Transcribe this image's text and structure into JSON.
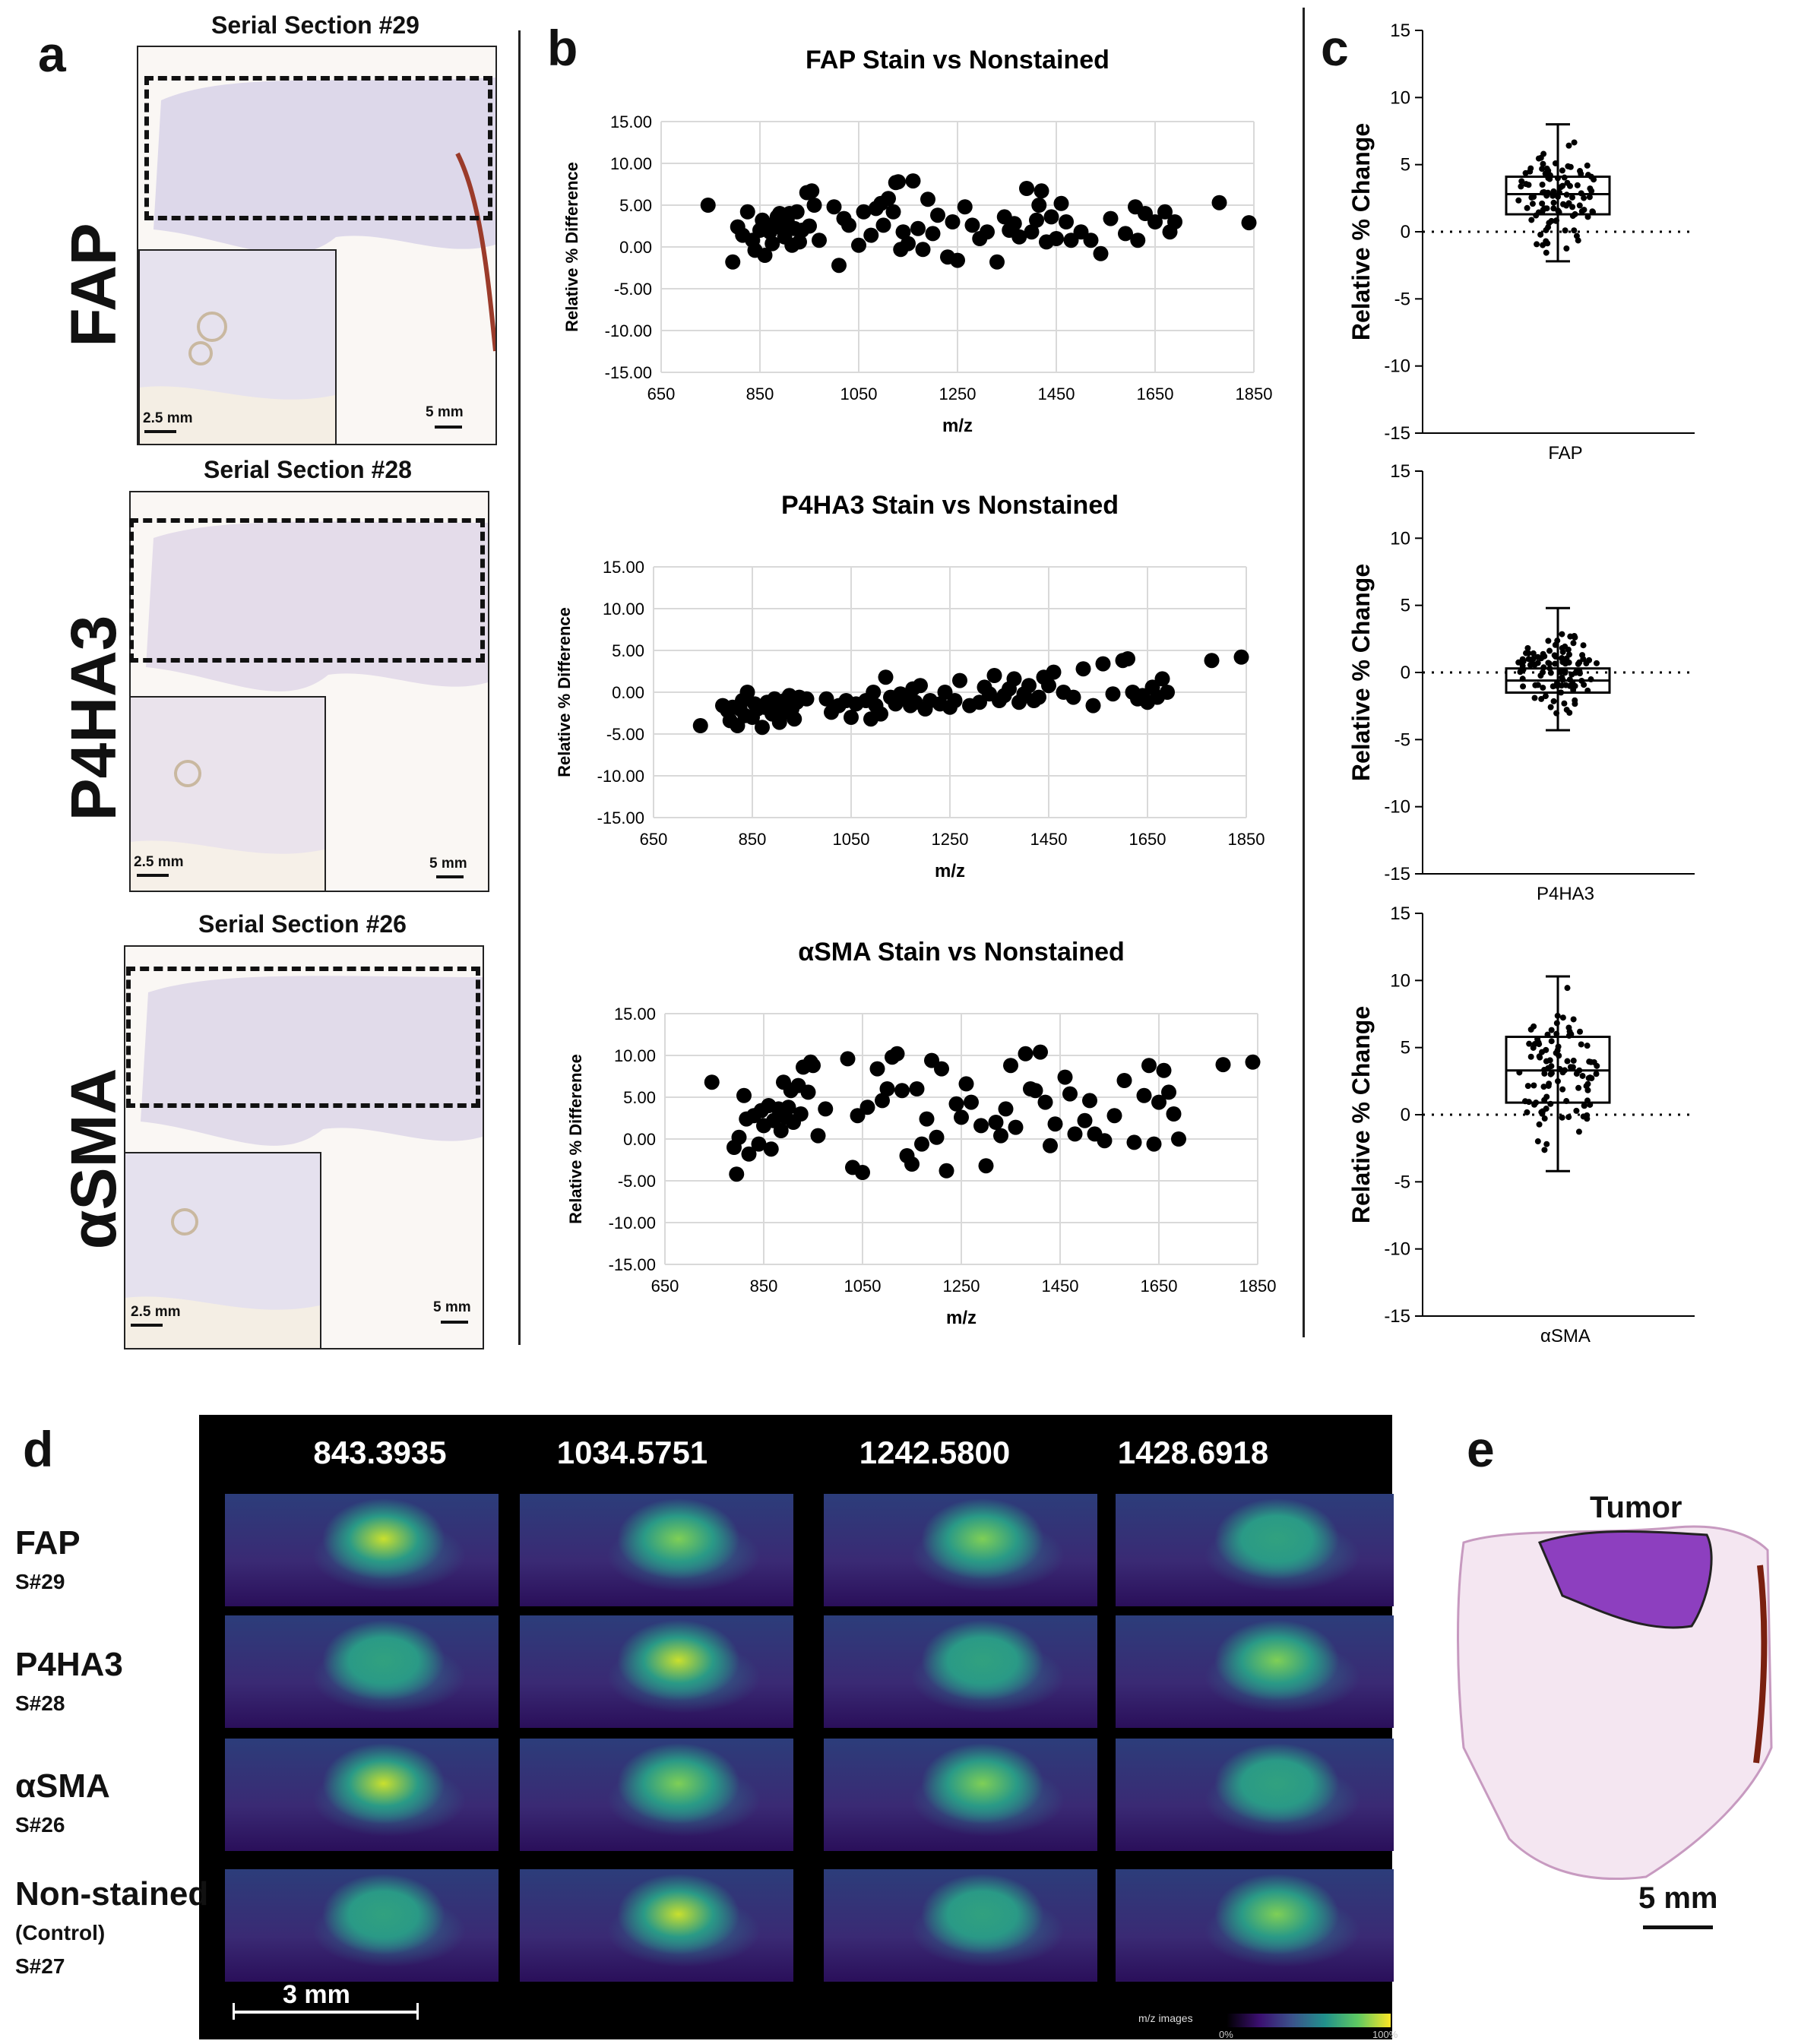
{
  "panel_a": {
    "letter": "a",
    "sections": [
      {
        "title": "Serial  Section #29",
        "stain": "FAP",
        "inset_scale": "2.5 mm",
        "full_scale": "5 mm"
      },
      {
        "title": "Serial  Section #28",
        "stain": "P4HA3",
        "inset_scale": "2.5 mm",
        "full_scale": "5 mm"
      },
      {
        "title": "Serial  Section #26",
        "stain": "αSMA",
        "inset_scale": "2.5 mm",
        "full_scale": "5 mm"
      }
    ]
  },
  "panel_b": {
    "letter": "b"
  },
  "panel_c": {
    "letter": "c"
  },
  "panel_d": {
    "letter": "d",
    "mz_values": [
      "843.3935",
      "1034.5751",
      "1242.5800",
      "1428.6918"
    ],
    "rows": [
      {
        "label": "FAP",
        "sub": "S#29"
      },
      {
        "label": "P4HA3",
        "sub": "S#28"
      },
      {
        "label": "αSMA",
        "sub": "S#26"
      },
      {
        "label": "Non-stained",
        "label2": "(Control)",
        "sub": "S#27"
      }
    ],
    "scale_bar": "3 mm",
    "colorbar_label": "m/z images",
    "colorbar_min": "0%",
    "colorbar_max": "100%"
  },
  "panel_e": {
    "letter": "e",
    "tumor_label": "Tumor",
    "scale_bar": "5 mm"
  },
  "chart_data": [
    {
      "type": "scatter",
      "panel": "b",
      "title": "FAP Stain vs Nonstained",
      "xlabel": "m/z",
      "ylabel": "Relative % Difference",
      "xlim": [
        650,
        1850
      ],
      "ylim": [
        -15,
        15
      ],
      "xticks": [
        650,
        850,
        1050,
        1250,
        1450,
        1650,
        1850
      ],
      "yticks": [
        15,
        10,
        5,
        0,
        -5,
        -10,
        -15
      ],
      "ytick_labels": [
        "15.00",
        "10.00",
        "5.00",
        "0.00",
        "-5.00",
        "-10.00",
        "-15.00"
      ],
      "x": [
        745,
        795,
        805,
        815,
        825,
        835,
        840,
        850,
        855,
        860,
        870,
        875,
        880,
        885,
        890,
        895,
        900,
        905,
        910,
        915,
        920,
        925,
        930,
        935,
        945,
        950,
        955,
        960,
        970,
        1000,
        1010,
        1020,
        1030,
        1050,
        1060,
        1075,
        1085,
        1095,
        1100,
        1110,
        1120,
        1125,
        1130,
        1135,
        1140,
        1150,
        1160,
        1170,
        1180,
        1190,
        1200,
        1210,
        1230,
        1240,
        1250,
        1265,
        1280,
        1295,
        1310,
        1330,
        1345,
        1355,
        1365,
        1375,
        1390,
        1400,
        1410,
        1415,
        1420,
        1430,
        1440,
        1450,
        1460,
        1470,
        1480,
        1500,
        1520,
        1540,
        1560,
        1590,
        1610,
        1615,
        1630,
        1650,
        1670,
        1680,
        1690,
        1780,
        1840
      ],
      "y": [
        5.0,
        -1.8,
        2.4,
        1.4,
        4.2,
        0.8,
        -0.4,
        2.0,
        3.2,
        -1.0,
        1.8,
        0.4,
        2.8,
        3.6,
        4.0,
        2.2,
        1.2,
        3.2,
        4.0,
        0.2,
        2.2,
        4.2,
        0.6,
        2.0,
        6.5,
        2.5,
        6.7,
        5.0,
        0.8,
        4.8,
        -2.2,
        3.4,
        2.6,
        0.2,
        4.2,
        1.4,
        4.6,
        5.2,
        2.6,
        5.8,
        4.2,
        7.7,
        7.8,
        -0.3,
        1.8,
        0.4,
        7.9,
        2.2,
        -0.3,
        5.7,
        1.6,
        3.8,
        -1.2,
        3.0,
        -1.6,
        4.8,
        2.6,
        1.0,
        1.8,
        -1.8,
        3.6,
        2.0,
        2.8,
        1.2,
        7.0,
        1.8,
        3.2,
        5.0,
        6.7,
        0.6,
        3.6,
        1.0,
        5.2,
        3.0,
        0.8,
        1.8,
        0.8,
        -0.8,
        3.4,
        1.6,
        4.8,
        0.8,
        4.0,
        3.0,
        4.2,
        1.8,
        3.0,
        5.3,
        2.9
      ]
    },
    {
      "type": "scatter",
      "panel": "b",
      "title": "P4HA3 Stain vs Nonstained",
      "xlabel": "m/z",
      "ylabel": "Relative % Difference",
      "xlim": [
        650,
        1850
      ],
      "ylim": [
        -15,
        15
      ],
      "xticks": [
        650,
        850,
        1050,
        1250,
        1450,
        1650,
        1850
      ],
      "yticks": [
        15,
        10,
        5,
        0,
        -5,
        -10,
        -15
      ],
      "ytick_labels": [
        "15.00",
        "10.00",
        "5.00",
        "0.00",
        "-5.00",
        "-10.00",
        "-15.00"
      ],
      "x": [
        745,
        790,
        800,
        805,
        810,
        820,
        825,
        830,
        835,
        840,
        850,
        855,
        860,
        870,
        875,
        880,
        890,
        895,
        900,
        905,
        910,
        915,
        920,
        925,
        930,
        935,
        940,
        945,
        960,
        1000,
        1010,
        1025,
        1040,
        1050,
        1060,
        1080,
        1090,
        1095,
        1100,
        1110,
        1120,
        1130,
        1140,
        1150,
        1160,
        1170,
        1175,
        1180,
        1190,
        1200,
        1210,
        1230,
        1240,
        1250,
        1260,
        1270,
        1290,
        1310,
        1320,
        1330,
        1340,
        1350,
        1360,
        1370,
        1380,
        1390,
        1400,
        1410,
        1420,
        1430,
        1440,
        1450,
        1460,
        1480,
        1500,
        1520,
        1540,
        1560,
        1580,
        1600,
        1610,
        1620,
        1630,
        1640,
        1650,
        1660,
        1670,
        1680,
        1690,
        1780,
        1840
      ],
      "y": [
        -4.0,
        -1.6,
        -2.2,
        -3.4,
        -1.8,
        -4.0,
        -2.0,
        -1.0,
        -2.8,
        0.0,
        -3.0,
        -1.4,
        -2.0,
        -4.2,
        -1.8,
        -1.2,
        -2.6,
        -0.8,
        -2.2,
        -3.6,
        -1.4,
        -1.0,
        -2.4,
        -0.4,
        -2.0,
        -3.2,
        -1.2,
        -0.6,
        -0.8,
        -0.8,
        -2.4,
        -1.6,
        -1.0,
        -3.0,
        -1.4,
        -1.0,
        -3.2,
        0.0,
        -1.6,
        -2.6,
        1.8,
        -0.6,
        -1.4,
        -0.2,
        -0.8,
        -1.6,
        0.4,
        -1.2,
        0.8,
        -2.0,
        -1.0,
        -1.4,
        0.0,
        -1.8,
        -1.0,
        1.4,
        -1.6,
        -1.2,
        0.6,
        -0.2,
        2.0,
        -1.0,
        -0.4,
        0.4,
        1.6,
        -1.2,
        -0.2,
        0.8,
        -1.0,
        -0.6,
        1.8,
        0.8,
        2.4,
        0.0,
        -0.6,
        2.8,
        -1.6,
        3.4,
        -0.2,
        3.8,
        4.0,
        0.0,
        -0.8,
        -0.4,
        -1.2,
        0.6,
        -0.6,
        1.6,
        0.0,
        3.8,
        4.2
      ]
    },
    {
      "type": "scatter",
      "panel": "b",
      "title": "αSMA Stain vs Nonstained",
      "xlabel": "m/z",
      "ylabel": "Relative % Difference",
      "xlim": [
        650,
        1850
      ],
      "ylim": [
        -15,
        15
      ],
      "xticks": [
        650,
        850,
        1050,
        1250,
        1450,
        1650,
        1850
      ],
      "yticks": [
        15,
        10,
        5,
        0,
        -5,
        -10,
        -15
      ],
      "ytick_labels": [
        "15.00",
        "10.00",
        "5.00",
        "0.00",
        "-5.00",
        "-10.00",
        "-15.00"
      ],
      "x": [
        745,
        790,
        795,
        800,
        810,
        815,
        820,
        830,
        840,
        845,
        850,
        860,
        865,
        870,
        880,
        885,
        890,
        895,
        900,
        905,
        910,
        920,
        925,
        930,
        940,
        945,
        950,
        960,
        975,
        1020,
        1030,
        1040,
        1050,
        1060,
        1080,
        1090,
        1100,
        1110,
        1120,
        1130,
        1140,
        1150,
        1160,
        1170,
        1180,
        1190,
        1200,
        1210,
        1220,
        1240,
        1250,
        1260,
        1270,
        1290,
        1300,
        1320,
        1330,
        1340,
        1350,
        1360,
        1380,
        1390,
        1400,
        1410,
        1420,
        1430,
        1440,
        1460,
        1470,
        1480,
        1500,
        1510,
        1520,
        1540,
        1560,
        1580,
        1600,
        1620,
        1630,
        1640,
        1650,
        1660,
        1670,
        1680,
        1690,
        1780,
        1840
      ],
      "y": [
        6.8,
        -1.0,
        -4.2,
        0.2,
        5.2,
        2.4,
        -1.8,
        2.8,
        -0.6,
        3.4,
        1.6,
        4.0,
        -1.2,
        2.2,
        3.6,
        1.0,
        6.8,
        2.6,
        3.8,
        5.8,
        2.0,
        6.4,
        3.0,
        8.6,
        5.6,
        9.2,
        8.8,
        0.4,
        3.6,
        9.6,
        -3.4,
        2.8,
        -4.0,
        3.8,
        8.4,
        4.6,
        6.0,
        9.8,
        10.2,
        5.8,
        -2.0,
        -3.0,
        6.0,
        -0.6,
        2.4,
        9.4,
        0.2,
        8.4,
        -3.8,
        4.2,
        2.6,
        6.6,
        4.4,
        1.6,
        -3.2,
        2.0,
        0.4,
        3.6,
        8.8,
        1.4,
        10.2,
        6.0,
        5.8,
        10.4,
        4.4,
        -0.8,
        1.8,
        7.4,
        5.4,
        0.6,
        2.2,
        4.6,
        0.6,
        -0.2,
        2.8,
        7.0,
        -0.4,
        5.2,
        8.8,
        -0.6,
        4.4,
        8.2,
        5.6,
        3.0,
        0.0,
        8.9,
        9.2
      ]
    },
    {
      "type": "box-scatter",
      "panel": "c",
      "category": "FAP",
      "ylabel": "Relative % Change",
      "ylim": [
        -15,
        15
      ],
      "yticks": [
        15,
        10,
        5,
        0,
        -5,
        -10,
        -15
      ],
      "box": {
        "min": -2.2,
        "q1": 1.3,
        "median": 2.8,
        "q3": 4.1,
        "max": 8.0
      }
    },
    {
      "type": "box-scatter",
      "panel": "c",
      "category": "P4HA3",
      "ylabel": "Relative % Change",
      "ylim": [
        -15,
        15
      ],
      "yticks": [
        15,
        10,
        5,
        0,
        -5,
        -10,
        -15
      ],
      "box": {
        "min": -4.3,
        "q1": -1.5,
        "median": -0.6,
        "q3": 0.3,
        "max": 4.8
      }
    },
    {
      "type": "box-scatter",
      "panel": "c",
      "category": "αSMA",
      "ylabel": "Relative % Change",
      "ylim": [
        -15,
        15
      ],
      "yticks": [
        15,
        10,
        5,
        0,
        -5,
        -10,
        -15
      ],
      "box": {
        "min": -4.2,
        "q1": 0.9,
        "median": 3.3,
        "q3": 5.8,
        "max": 10.3
      }
    }
  ]
}
